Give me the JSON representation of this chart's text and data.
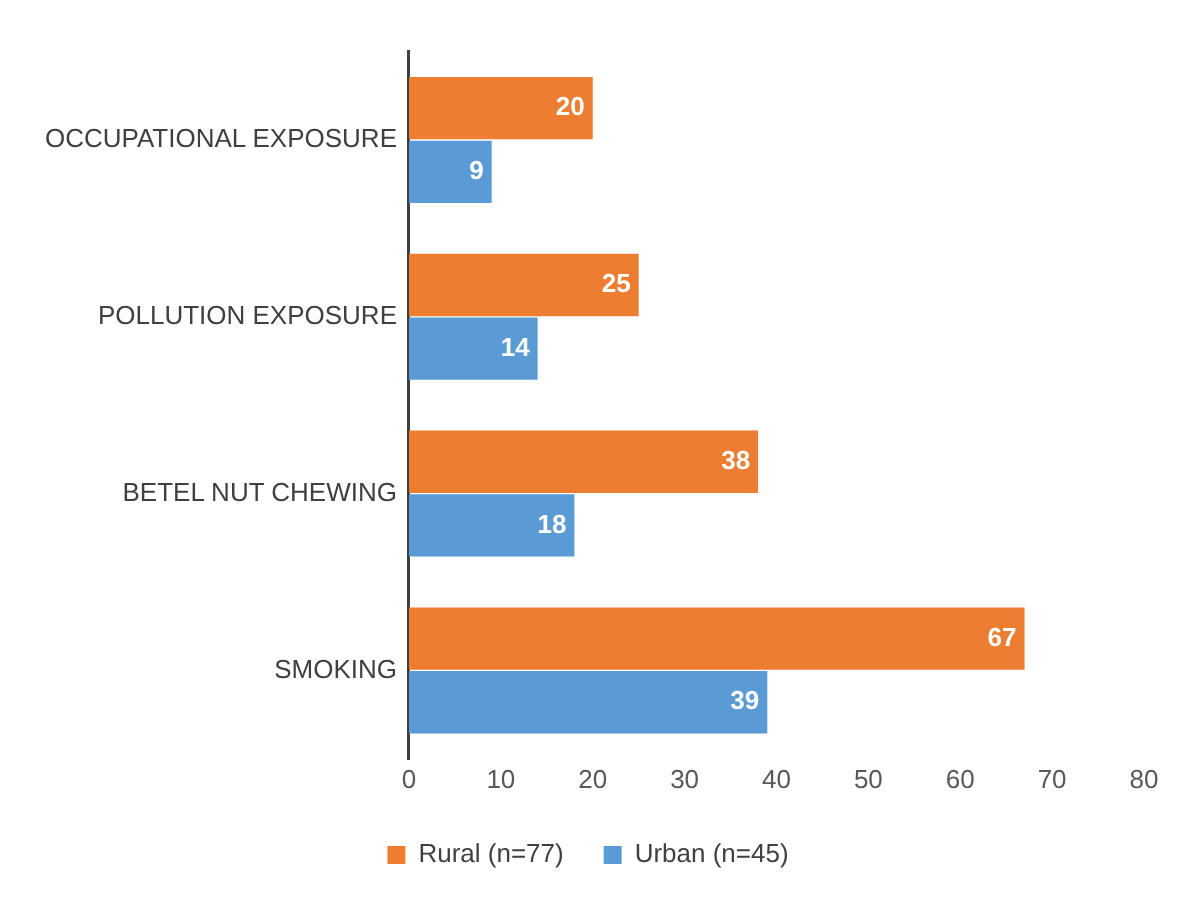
{
  "chart_data": {
    "type": "bar",
    "orientation": "horizontal",
    "categories": [
      "OCCUPATIONAL EXPOSURE",
      "POLLUTION EXPOSURE",
      "BETEL NUT CHEWING",
      "SMOKING"
    ],
    "series": [
      {
        "name": "Rural (n=77)",
        "color": "#ed7d31",
        "values": [
          20,
          25,
          38,
          67
        ]
      },
      {
        "name": "Urban (n=45)",
        "color": "#5b9bd5",
        "values": [
          9,
          14,
          18,
          39
        ]
      }
    ],
    "xlim": [
      0,
      80
    ],
    "xticks": [
      0,
      10,
      20,
      30,
      40,
      50,
      60,
      70,
      80
    ],
    "grid": false,
    "legend": "bottom",
    "data_labels": true
  }
}
